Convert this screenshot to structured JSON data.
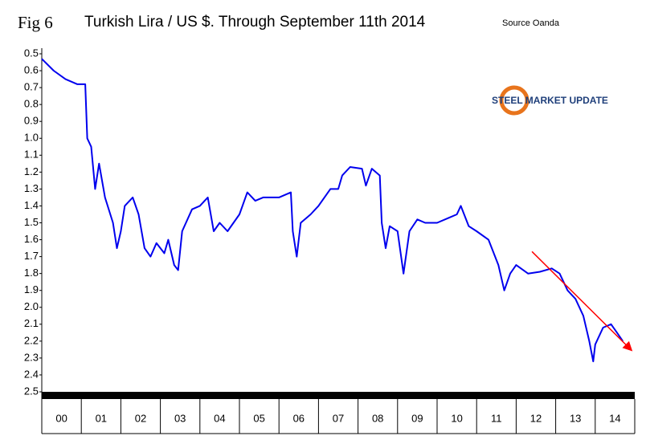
{
  "chart_data": {
    "type": "line",
    "figure_label": "Fig 6",
    "title": "Turkish Lira / US $. Through September 11th 2014",
    "source": "Source Oanda",
    "logo": "STEEL MARKET UPDATE",
    "y_inverted": true,
    "ylim": [
      0.5,
      2.5
    ],
    "yticks": [
      0.5,
      0.6,
      0.7,
      0.8,
      0.9,
      {
        "value": 1,
        "label": "1.0"
      },
      1.1,
      1.2,
      1.3,
      1.4,
      1.5,
      1.6,
      1.7,
      1.8,
      1.9,
      {
        "value": 2,
        "label": "2.0"
      },
      2.1,
      2.2,
      2.3,
      2.4,
      2.5
    ],
    "xlim": [
      0,
      15
    ],
    "xticks": [
      {
        "value": 0.5,
        "label": "00"
      },
      {
        "value": 1.5,
        "label": "01"
      },
      {
        "value": 2.5,
        "label": "02"
      },
      {
        "value": 3.5,
        "label": "03"
      },
      {
        "value": 4.5,
        "label": "04"
      },
      {
        "value": 5.5,
        "label": "05"
      },
      {
        "value": 6.5,
        "label": "06"
      },
      {
        "value": 7.5,
        "label": "07"
      },
      {
        "value": 8.5,
        "label": "08"
      },
      {
        "value": 9.5,
        "label": "09"
      },
      {
        "value": 10.5,
        "label": "10"
      },
      {
        "value": 11.5,
        "label": "11"
      },
      {
        "value": 12.5,
        "label": "12"
      },
      {
        "value": 13.5,
        "label": "13"
      },
      {
        "value": 14.5,
        "label": "14"
      }
    ],
    "series": [
      {
        "color": "#0000ee",
        "x": [
          0,
          0.3,
          0.6,
          0.9,
          1.1,
          1.15,
          1.25,
          1.35,
          1.45,
          1.6,
          1.8,
          1.9,
          2.0,
          2.1,
          2.3,
          2.45,
          2.6,
          2.75,
          2.9,
          3.1,
          3.2,
          3.35,
          3.45,
          3.55,
          3.8,
          4.0,
          4.2,
          4.35,
          4.5,
          4.7,
          5.0,
          5.2,
          5.4,
          5.6,
          6.0,
          6.3,
          6.35,
          6.45,
          6.55,
          6.8,
          7.0,
          7.3,
          7.5,
          7.6,
          7.8,
          8.1,
          8.2,
          8.35,
          8.55,
          8.6,
          8.7,
          8.8,
          9.0,
          9.15,
          9.3,
          9.5,
          9.7,
          10.0,
          10.3,
          10.5,
          10.6,
          10.8,
          11.0,
          11.3,
          11.55,
          11.7,
          11.85,
          12.0,
          12.3,
          12.6,
          12.9,
          13.1,
          13.3,
          13.5,
          13.7,
          13.85,
          13.95,
          14.0,
          14.2,
          14.4,
          14.55,
          14.7
        ],
        "values": [
          0.53,
          0.6,
          0.65,
          0.68,
          0.68,
          1.0,
          1.05,
          1.3,
          1.15,
          1.35,
          1.5,
          1.65,
          1.55,
          1.4,
          1.35,
          1.45,
          1.65,
          1.7,
          1.62,
          1.68,
          1.6,
          1.75,
          1.78,
          1.55,
          1.42,
          1.4,
          1.35,
          1.55,
          1.5,
          1.55,
          1.45,
          1.32,
          1.37,
          1.35,
          1.35,
          1.32,
          1.55,
          1.7,
          1.5,
          1.45,
          1.4,
          1.3,
          1.3,
          1.22,
          1.17,
          1.18,
          1.28,
          1.18,
          1.22,
          1.5,
          1.65,
          1.52,
          1.55,
          1.8,
          1.55,
          1.48,
          1.5,
          1.5,
          1.47,
          1.45,
          1.4,
          1.52,
          1.55,
          1.6,
          1.75,
          1.9,
          1.8,
          1.75,
          1.8,
          1.79,
          1.77,
          1.8,
          1.9,
          1.95,
          2.05,
          2.2,
          2.32,
          2.22,
          2.12,
          2.1,
          2.15,
          2.2
        ]
      }
    ],
    "trend": {
      "color": "#ff0000",
      "x": [
        12.4,
        14.9
      ],
      "values": [
        1.67,
        2.25
      ]
    }
  }
}
